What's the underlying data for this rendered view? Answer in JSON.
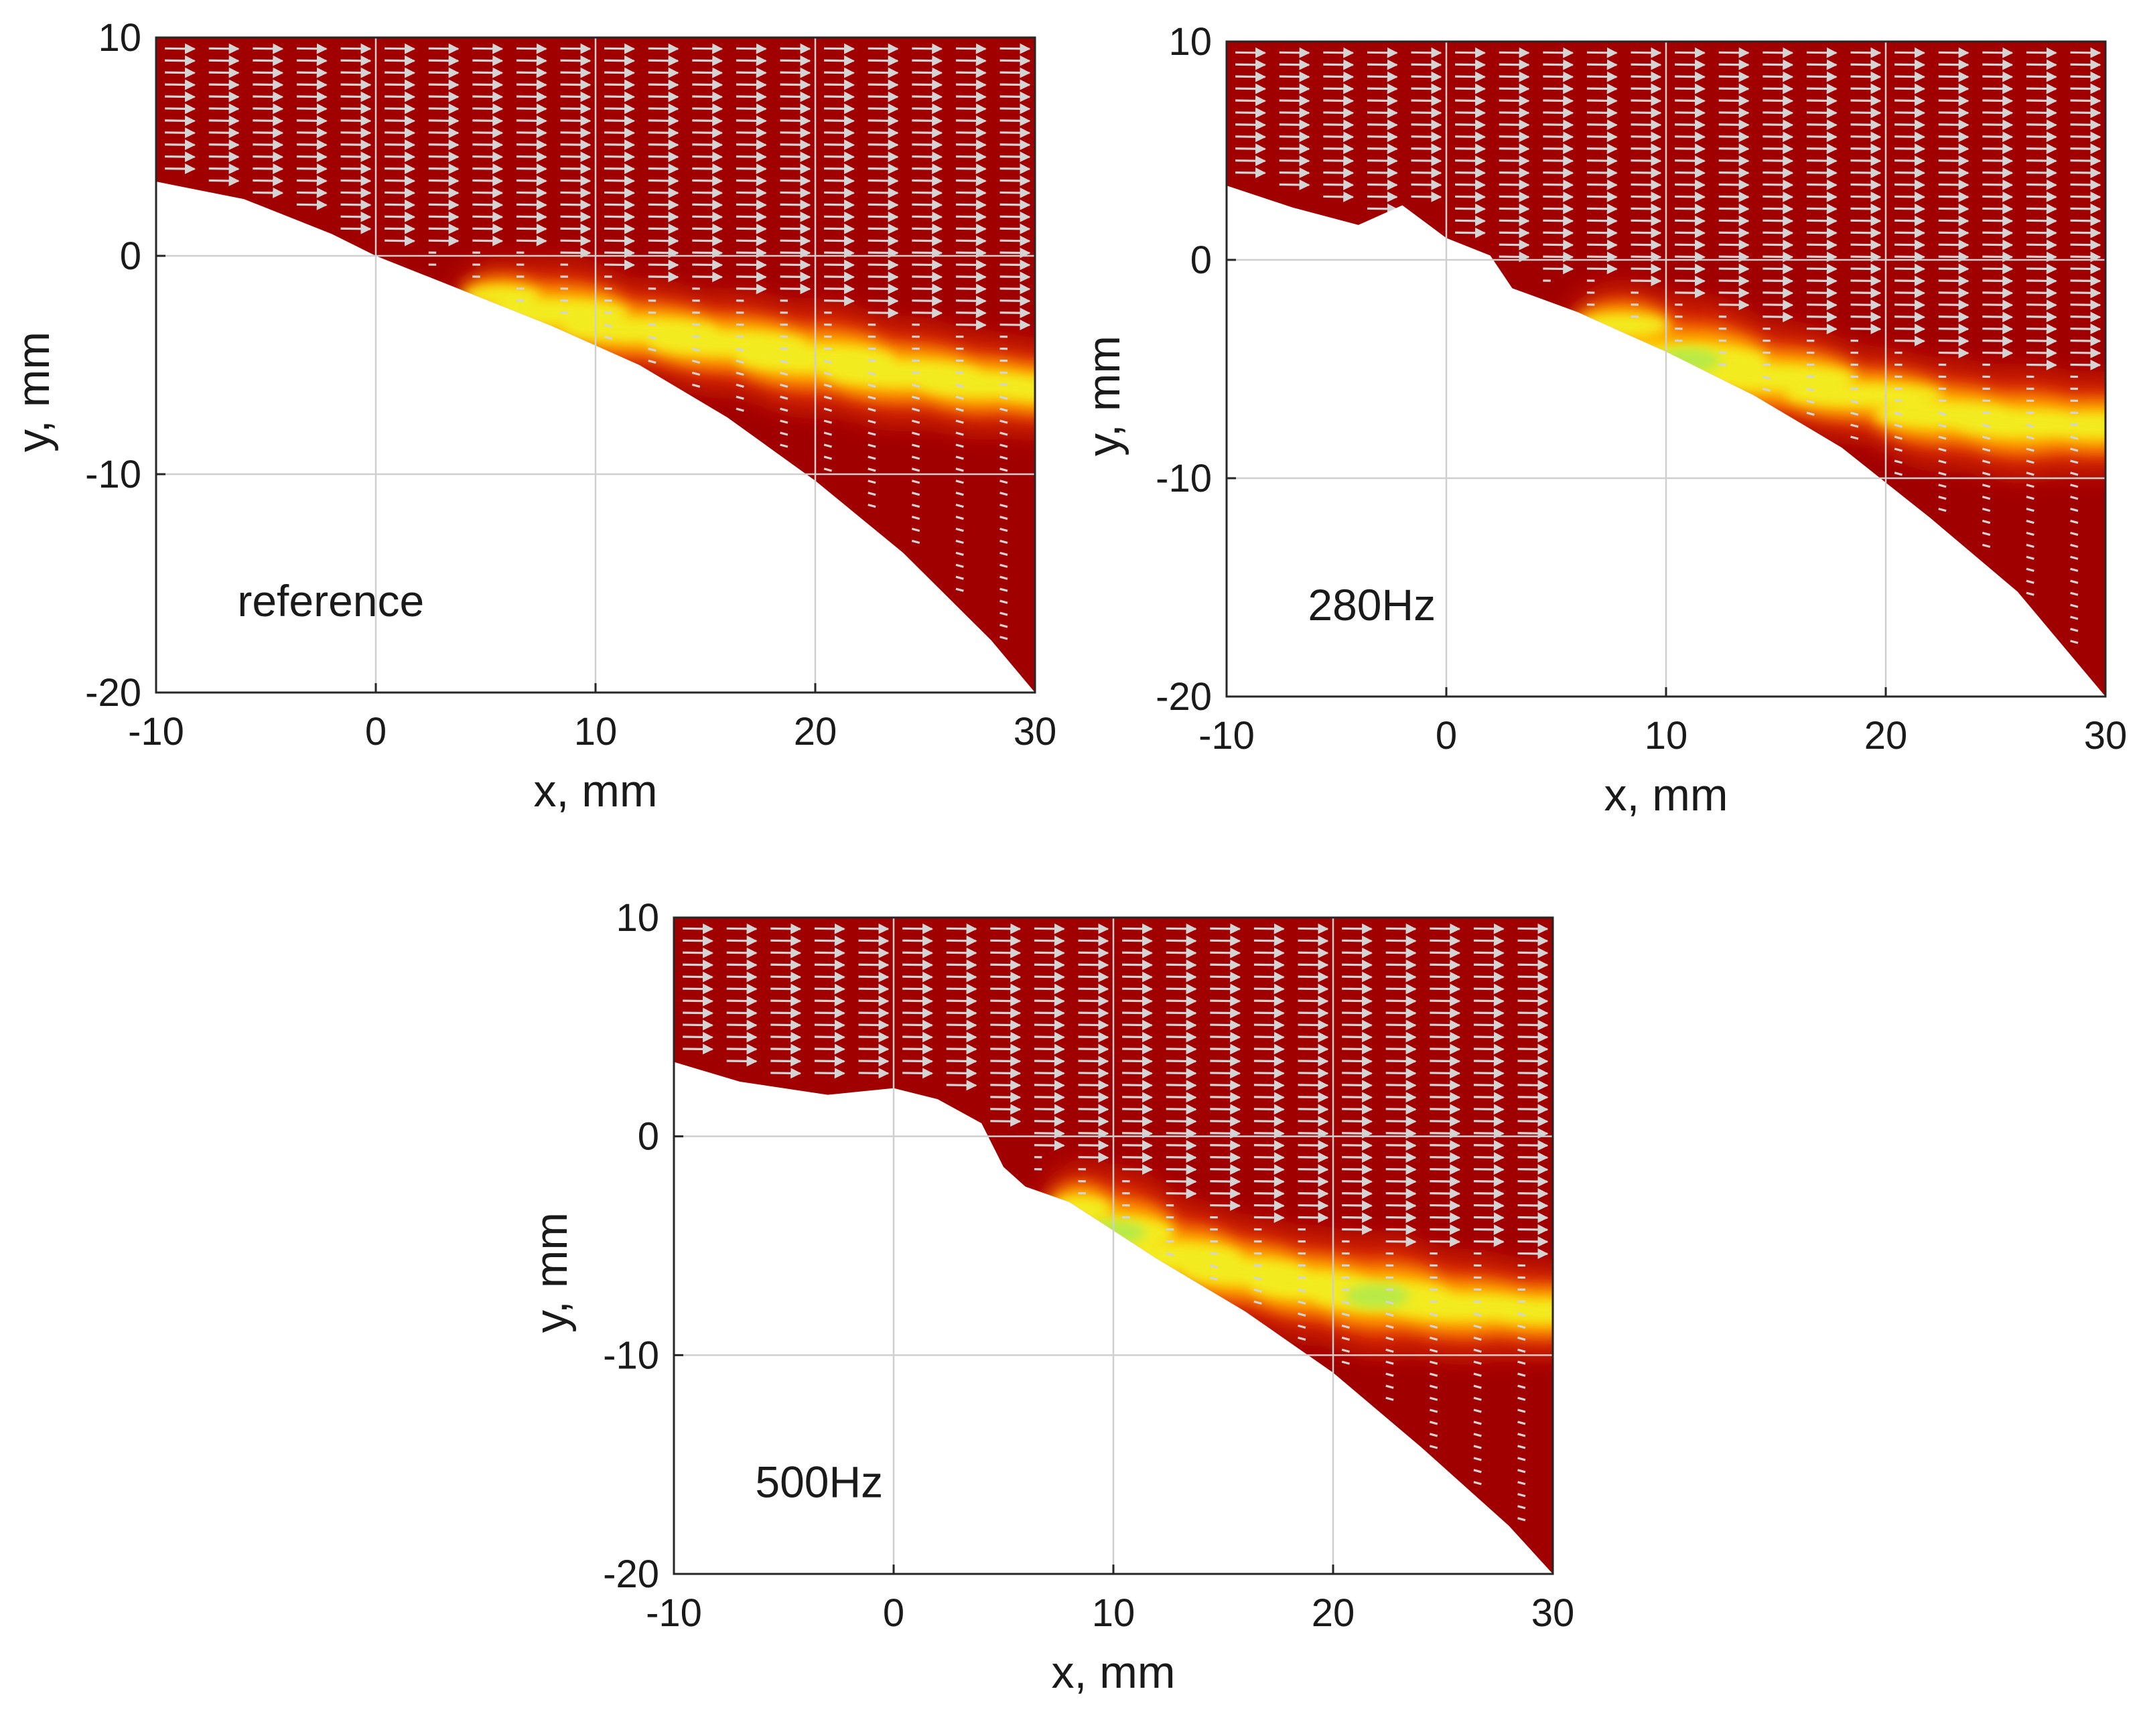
{
  "figure": {
    "description_free": true,
    "colors": {
      "background_region": "#a00000",
      "vector": "#d4d4d4",
      "grid": "#cfcfcf",
      "colormap": [
        "#a00000",
        "#cc1400",
        "#ee4a00",
        "#ff8a00",
        "#ffc800",
        "#f2ee20",
        "#b8ea46"
      ]
    }
  },
  "chart_data": [
    {
      "type": "heatmap",
      "name": "reference",
      "annotation": "reference",
      "xlabel": "x, mm",
      "ylabel": "y, mm",
      "xlim": [
        -10,
        30
      ],
      "ylim": [
        -20,
        10
      ],
      "xticks": [
        "-10",
        "0",
        "10",
        "20",
        "30"
      ],
      "yticks": [
        "10",
        "0",
        "-10",
        "-20"
      ],
      "grid": true,
      "boundary": [
        [
          -10,
          3.4
        ],
        [
          -6,
          2.6
        ],
        [
          -2,
          1.0
        ],
        [
          0,
          0.0
        ],
        [
          4,
          -1.6
        ],
        [
          8,
          -3.2
        ],
        [
          12,
          -5.0
        ],
        [
          16,
          -7.4
        ],
        [
          20,
          -10.3
        ],
        [
          24,
          -13.6
        ],
        [
          28,
          -17.6
        ],
        [
          30,
          -20.0
        ]
      ],
      "shear_layer": [
        {
          "x": 5,
          "y": -1.8,
          "level": 0.45
        },
        {
          "x": 8,
          "y": -2.6,
          "level": 0.8
        },
        {
          "x": 12,
          "y": -3.4,
          "level": 0.7
        },
        {
          "x": 16,
          "y": -4.0,
          "level": 0.75
        },
        {
          "x": 20,
          "y": -4.7,
          "level": 0.85
        },
        {
          "x": 24,
          "y": -5.4,
          "level": 0.8
        },
        {
          "x": 28,
          "y": -5.9,
          "level": 0.75
        },
        {
          "x": 30,
          "y": -6.1,
          "level": 0.7
        }
      ]
    },
    {
      "type": "heatmap",
      "name": "280Hz",
      "annotation": "280Hz",
      "xlabel": "x, mm",
      "ylabel": "y, mm",
      "xlim": [
        -10,
        30
      ],
      "ylim": [
        -20,
        10
      ],
      "xticks": [
        "-10",
        "0",
        "10",
        "20",
        "30"
      ],
      "yticks": [
        "10",
        "0",
        "-10",
        "-20"
      ],
      "grid": true,
      "boundary": [
        [
          -10,
          3.4
        ],
        [
          -7,
          2.4
        ],
        [
          -4,
          1.6
        ],
        [
          -2,
          2.5
        ],
        [
          0,
          1.0
        ],
        [
          2,
          0.2
        ],
        [
          3,
          -1.3
        ],
        [
          6,
          -2.4
        ],
        [
          10,
          -4.2
        ],
        [
          14,
          -6.2
        ],
        [
          18,
          -8.6
        ],
        [
          22,
          -11.8
        ],
        [
          26,
          -15.2
        ],
        [
          30,
          -20.0
        ]
      ],
      "shear_layer": [
        {
          "x": 7,
          "y": -3.0,
          "level": 0.6
        },
        {
          "x": 11,
          "y": -4.6,
          "level": 1.0
        },
        {
          "x": 15,
          "y": -5.4,
          "level": 0.8
        },
        {
          "x": 19,
          "y": -6.2,
          "level": 0.65
        },
        {
          "x": 23,
          "y": -7.1,
          "level": 0.8
        },
        {
          "x": 26,
          "y": -7.5,
          "level": 0.85
        },
        {
          "x": 30,
          "y": -7.6,
          "level": 0.75
        }
      ]
    },
    {
      "type": "heatmap",
      "name": "500Hz",
      "annotation": "500Hz",
      "xlabel": "x, mm",
      "ylabel": "y, mm",
      "xlim": [
        -10,
        30
      ],
      "ylim": [
        -20,
        10
      ],
      "xticks": [
        "-10",
        "0",
        "10",
        "20",
        "30"
      ],
      "yticks": [
        "10",
        "0",
        "-10",
        "-20"
      ],
      "grid": true,
      "boundary": [
        [
          -10,
          3.4
        ],
        [
          -7,
          2.5
        ],
        [
          -3,
          1.9
        ],
        [
          0,
          2.2
        ],
        [
          2,
          1.7
        ],
        [
          4,
          0.6
        ],
        [
          5,
          -1.4
        ],
        [
          6,
          -2.3
        ],
        [
          8,
          -3.0
        ],
        [
          12,
          -5.6
        ],
        [
          16,
          -8.0
        ],
        [
          20,
          -10.8
        ],
        [
          24,
          -14.2
        ],
        [
          28,
          -17.8
        ],
        [
          30,
          -20.0
        ]
      ],
      "shear_layer": [
        {
          "x": 8,
          "y": -3.3,
          "level": 0.7
        },
        {
          "x": 10,
          "y": -4.4,
          "level": 1.0
        },
        {
          "x": 13,
          "y": -5.5,
          "level": 0.85
        },
        {
          "x": 16,
          "y": -6.2,
          "level": 0.8
        },
        {
          "x": 19,
          "y": -6.8,
          "level": 0.85
        },
        {
          "x": 22,
          "y": -7.3,
          "level": 0.95
        },
        {
          "x": 26,
          "y": -7.8,
          "level": 0.8
        },
        {
          "x": 30,
          "y": -8.0,
          "level": 0.7
        }
      ]
    }
  ]
}
